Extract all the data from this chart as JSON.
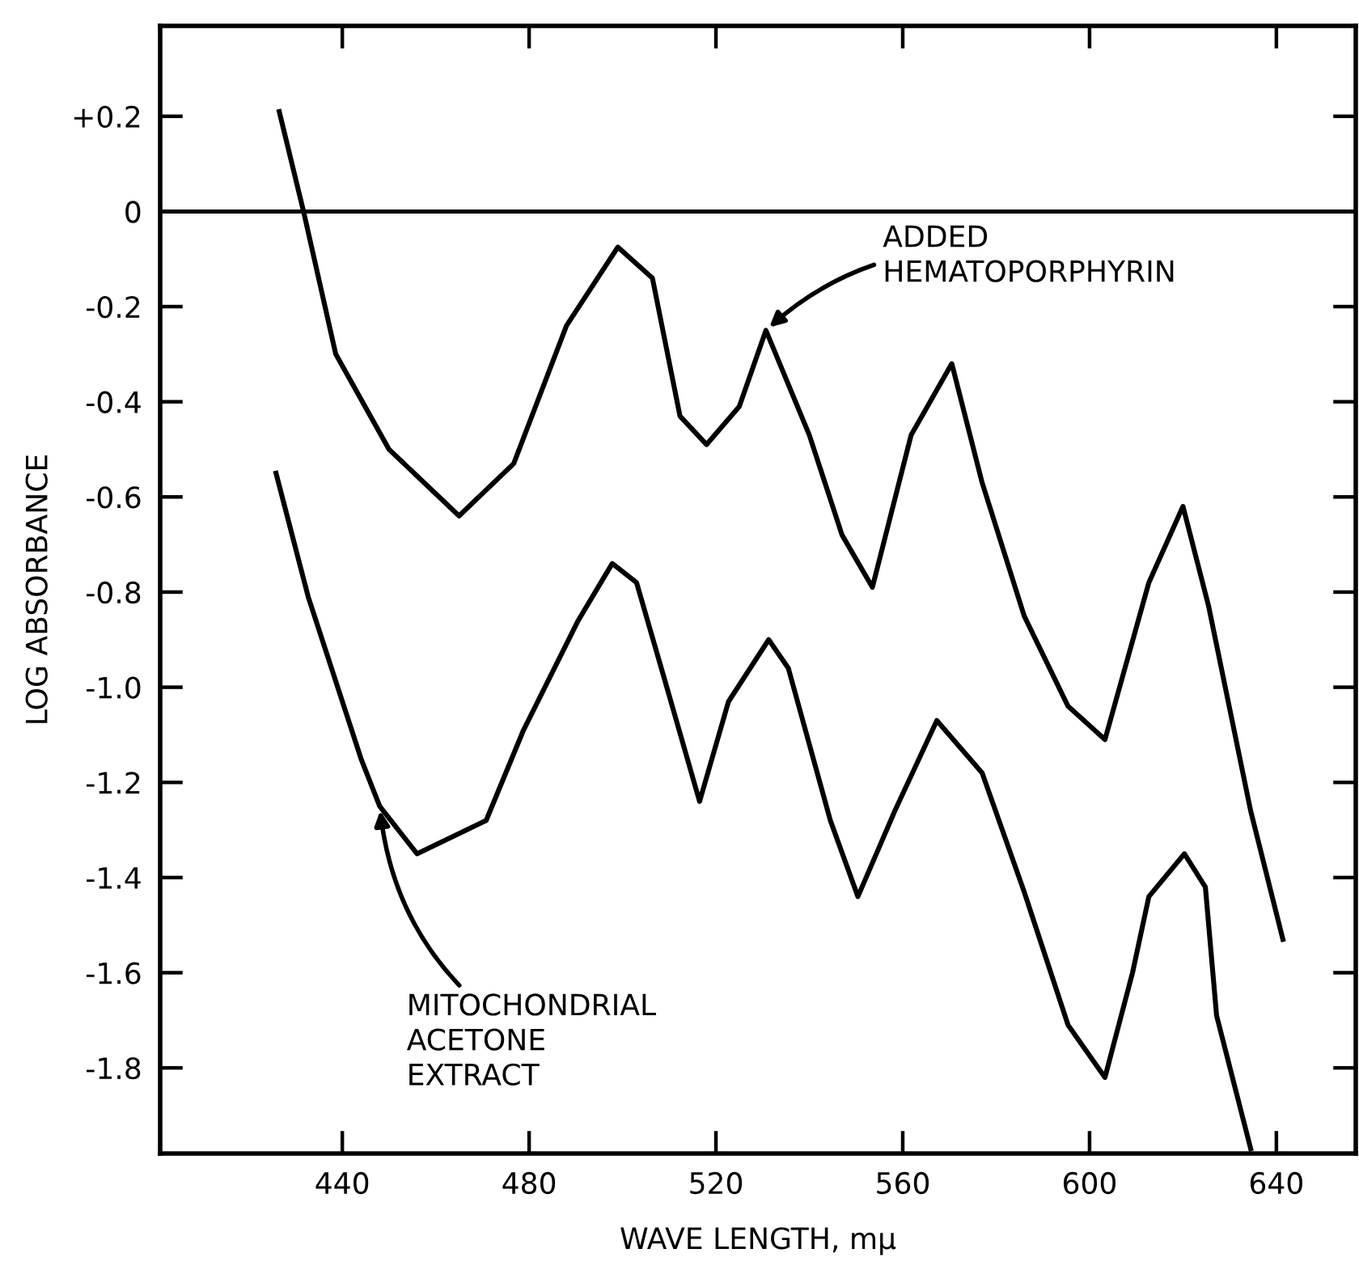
{
  "chart_data": {
    "type": "line",
    "xlabel": "WAVE LENGTH, mμ",
    "ylabel": "LOG ABSORBANCE",
    "xlim": [
      401,
      657
    ],
    "ylim": [
      -1.98,
      0.39
    ],
    "xticks": [
      440,
      480,
      520,
      560,
      600,
      640
    ],
    "yticks": [
      {
        "value": 0.2,
        "label": "+0.2"
      },
      0,
      -0.2,
      -0.4,
      -0.6,
      -0.8,
      {
        "value": -1.0,
        "label": "-1.0"
      },
      -1.2,
      -1.4,
      -1.6,
      -1.8
    ],
    "grid": false,
    "marker": "none",
    "line_style": "solid",
    "ref_lines": [
      {
        "axis": "y",
        "value": 0,
        "label": null,
        "color": "#000000",
        "line_style": "solid"
      }
    ],
    "series": [
      {
        "color": "#000000",
        "x": [
          426.5,
          431.7,
          438.6,
          450,
          465,
          476.7,
          488,
          499,
          506.4,
          512.3,
          518,
          525,
          530.7,
          540,
          547,
          553.5,
          561.8,
          570.5,
          577,
          586,
          595.4,
          603.3,
          612.7,
          620,
          625.5,
          634.5,
          641.4
        ],
        "values": [
          0.21,
          0,
          -0.3,
          -0.5,
          -0.64,
          -0.53,
          -0.24,
          -0.075,
          -0.14,
          -0.43,
          -0.49,
          -0.41,
          -0.25,
          -0.47,
          -0.68,
          -0.79,
          -0.47,
          -0.32,
          -0.57,
          -0.85,
          -1.04,
          -1.11,
          -0.78,
          -0.62,
          -0.83,
          -1.26,
          -1.53
        ]
      },
      {
        "color": "#000000",
        "x": [
          425.8,
          432.7,
          444,
          448,
          456,
          470.8,
          478.8,
          490.5,
          497.8,
          503,
          508.9,
          516.5,
          522.7,
          531.3,
          535.5,
          544.5,
          550.4,
          558.3,
          567.3,
          577,
          586,
          595.4,
          603.3,
          609.2,
          612.7,
          620.3,
          624.8,
          627.2,
          634.5
        ],
        "values": [
          -0.55,
          -0.81,
          -1.15,
          -1.25,
          -1.35,
          -1.28,
          -1.09,
          -0.86,
          -0.74,
          -0.78,
          -0.98,
          -1.24,
          -1.03,
          -0.9,
          -0.96,
          -1.28,
          -1.44,
          -1.26,
          -1.07,
          -1.18,
          -1.43,
          -1.71,
          -1.82,
          -1.6,
          -1.44,
          -1.35,
          -1.42,
          -1.69,
          -1.97
        ]
      }
    ],
    "annotations": [
      {
        "text": "ADDED\nHEMATOPORPHYRIN",
        "x": 530.7,
        "y": -0.25
      },
      {
        "text": "MITOCHONDRIAL\nACETONE\nEXTRACT",
        "x": 448,
        "y": -1.25
      }
    ]
  }
}
